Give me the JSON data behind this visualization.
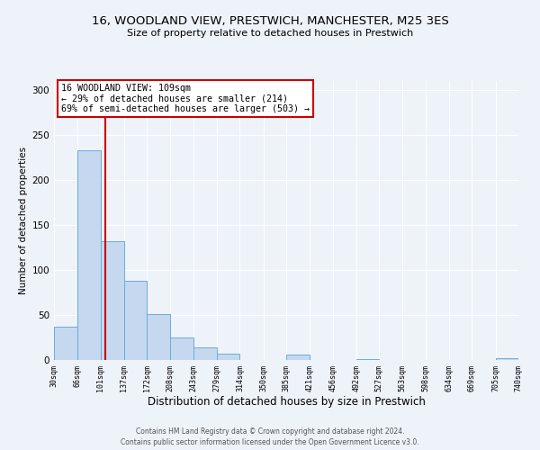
{
  "title": "16, WOODLAND VIEW, PRESTWICH, MANCHESTER, M25 3ES",
  "subtitle": "Size of property relative to detached houses in Prestwich",
  "xlabel": "Distribution of detached houses by size in Prestwich",
  "ylabel": "Number of detached properties",
  "bin_edges": [
    30,
    66,
    101,
    137,
    172,
    208,
    243,
    279,
    314,
    350,
    385,
    421,
    456,
    492,
    527,
    563,
    598,
    634,
    669,
    705,
    740
  ],
  "bar_heights": [
    37,
    233,
    132,
    88,
    51,
    25,
    14,
    7,
    0,
    0,
    6,
    0,
    0,
    1,
    0,
    0,
    0,
    0,
    0,
    2
  ],
  "bar_color": "#c5d8f0",
  "bar_edge_color": "#6aaed6",
  "ylim": [
    0,
    310
  ],
  "yticks": [
    0,
    50,
    100,
    150,
    200,
    250,
    300
  ],
  "vline_x": 109,
  "vline_color": "#cc0000",
  "annotation_text": "16 WOODLAND VIEW: 109sqm\n← 29% of detached houses are smaller (214)\n69% of semi-detached houses are larger (503) →",
  "annotation_box_edgecolor": "#cc0000",
  "footer_line1": "Contains HM Land Registry data © Crown copyright and database right 2024.",
  "footer_line2": "Contains public sector information licensed under the Open Government Licence v3.0.",
  "background_color": "#eef2f9",
  "plot_background": "#eef2f9",
  "grid_color": "#ffffff",
  "tick_labels": [
    "30sqm",
    "66sqm",
    "101sqm",
    "137sqm",
    "172sqm",
    "208sqm",
    "243sqm",
    "279sqm",
    "314sqm",
    "350sqm",
    "385sqm",
    "421sqm",
    "456sqm",
    "492sqm",
    "527sqm",
    "563sqm",
    "598sqm",
    "634sqm",
    "669sqm",
    "705sqm",
    "740sqm"
  ],
  "title_fontsize": 9.5,
  "subtitle_fontsize": 8,
  "ylabel_fontsize": 7.5,
  "xlabel_fontsize": 8.5
}
